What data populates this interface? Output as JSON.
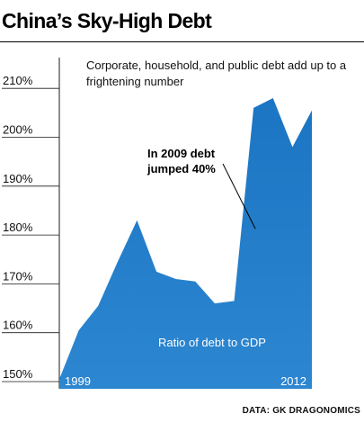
{
  "header": {
    "title": "China’s Sky-High Debt",
    "subtitle": "Corporate, household, and public debt add up to a frightening number"
  },
  "source": "DATA: GK DRAGONOMICS",
  "colors": {
    "area_fill": "#1b75c3",
    "area_inner": "#2d86d0",
    "grid": "#1a1a1a",
    "text_on_area": "#ffffff"
  },
  "chart_data": {
    "type": "area",
    "title": "China’s Sky-High Debt",
    "subtitle": "Corporate, household, and public debt add up to a frightening number",
    "series": [
      {
        "name": "Ratio of debt to GDP",
        "x": [
          1999,
          2000,
          2001,
          2002,
          2003,
          2004,
          2005,
          2006,
          2007,
          2008,
          2009,
          2010,
          2011,
          2012
        ],
        "values": [
          150.5,
          160.5,
          165.5,
          174.5,
          183,
          172.5,
          171,
          170.5,
          166,
          166.5,
          206,
          208,
          198,
          205.5
        ]
      }
    ],
    "x_tick_labels": [
      "1999",
      "2012"
    ],
    "y_ticks": [
      150,
      160,
      170,
      180,
      190,
      200,
      210
    ],
    "y_tick_labels": [
      "150%",
      "160%",
      "170%",
      "180%",
      "190%",
      "200%",
      "210%"
    ],
    "ylim": [
      150,
      212
    ],
    "xlim": [
      1999,
      2012
    ],
    "grid": true,
    "area_label": "Ratio of debt to GDP",
    "annotations": [
      {
        "text_line1": "In 2009 debt",
        "text_line2": "jumped 40%",
        "x": 2009,
        "y": 182
      }
    ]
  }
}
